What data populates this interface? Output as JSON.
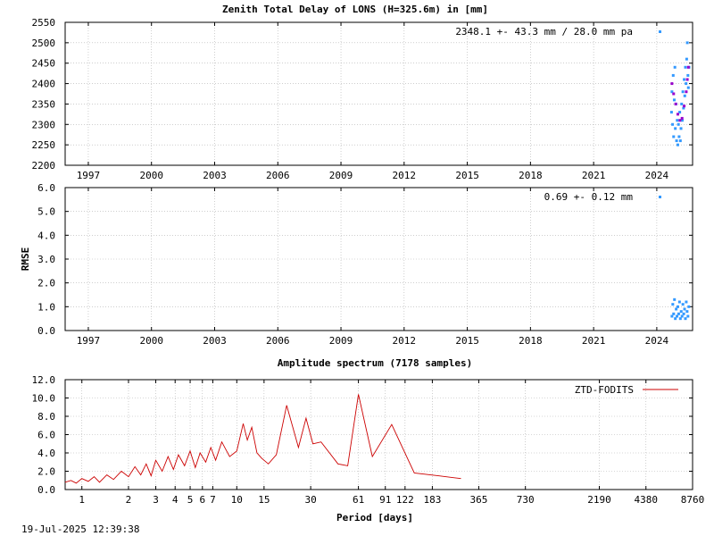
{
  "footer_timestamp": "19-Jul-2025 12:39:38",
  "chart_data": [
    {
      "type": "scatter",
      "title": "Zenith Total Delay of LONS (H=325.6m) in [mm]",
      "ylabel": "",
      "ylim": [
        2200,
        2550
      ],
      "yticks": [
        2200,
        2250,
        2300,
        2350,
        2400,
        2450,
        2500,
        2550
      ],
      "ytick_labels": [
        "2200",
        "2250",
        "2300",
        "2350",
        "2400",
        "2450",
        "2500",
        "2550"
      ],
      "xlim": [
        1995.9,
        2025.7
      ],
      "xticks": [
        1997,
        2000,
        2003,
        2006,
        2009,
        2012,
        2015,
        2018,
        2021,
        2024
      ],
      "xtick_labels": [
        "1997",
        "2000",
        "2003",
        "2006",
        "2009",
        "2012",
        "2015",
        "2018",
        "2021",
        "2024"
      ],
      "annotation": "2348.1 +-  43.3 mm / 28.0 mm pa",
      "legend_marker_color": "#3399ff",
      "grid": true,
      "series": [
        {
          "color": "#3399ff",
          "points": [
            [
              2024.7,
              2330
            ],
            [
              2024.72,
              2380
            ],
            [
              2024.75,
              2300
            ],
            [
              2024.78,
              2420
            ],
            [
              2024.8,
              2270
            ],
            [
              2024.83,
              2360
            ],
            [
              2024.86,
              2440
            ],
            [
              2024.88,
              2290
            ],
            [
              2024.91,
              2350
            ],
            [
              2024.94,
              2260
            ],
            [
              2024.97,
              2310
            ],
            [
              2025.0,
              2250
            ],
            [
              2025.03,
              2300
            ],
            [
              2025.06,
              2270
            ],
            [
              2025.09,
              2330
            ],
            [
              2025.12,
              2260
            ],
            [
              2025.15,
              2290
            ],
            [
              2025.18,
              2350
            ],
            [
              2025.21,
              2310
            ],
            [
              2025.24,
              2380
            ],
            [
              2025.27,
              2340
            ],
            [
              2025.3,
              2410
            ],
            [
              2025.33,
              2370
            ],
            [
              2025.36,
              2440
            ],
            [
              2025.39,
              2400
            ],
            [
              2025.42,
              2460
            ],
            [
              2025.45,
              2500
            ],
            [
              2025.48,
              2420
            ],
            [
              2025.5,
              2390
            ],
            [
              2025.53,
              2440
            ]
          ]
        },
        {
          "color": "#9900cc",
          "points": [
            [
              2024.72,
              2400
            ],
            [
              2024.8,
              2375
            ],
            [
              2024.9,
              2350
            ],
            [
              2025.0,
              2325
            ],
            [
              2025.1,
              2310
            ],
            [
              2025.2,
              2315
            ],
            [
              2025.3,
              2345
            ],
            [
              2025.4,
              2380
            ],
            [
              2025.45,
              2410
            ],
            [
              2025.5,
              2440
            ]
          ]
        }
      ]
    },
    {
      "type": "scatter",
      "title": "",
      "ylabel": "RMSE",
      "ylim": [
        0,
        6
      ],
      "yticks": [
        0,
        1,
        2,
        3,
        4,
        5,
        6
      ],
      "ytick_labels": [
        "0.0",
        "1.0",
        "2.0",
        "3.0",
        "4.0",
        "5.0",
        "6.0"
      ],
      "xlim": [
        1995.9,
        2025.7
      ],
      "xticks": [
        1997,
        2000,
        2003,
        2006,
        2009,
        2012,
        2015,
        2018,
        2021,
        2024
      ],
      "xtick_labels": [
        "1997",
        "2000",
        "2003",
        "2006",
        "2009",
        "2012",
        "2015",
        "2018",
        "2021",
        "2024"
      ],
      "annotation": "0.69 +-  0.12 mm",
      "legend_marker_color": "#3399ff",
      "grid": true,
      "series": [
        {
          "color": "#3399ff",
          "points": [
            [
              2024.72,
              0.6
            ],
            [
              2024.76,
              1.1
            ],
            [
              2024.8,
              0.7
            ],
            [
              2024.84,
              1.3
            ],
            [
              2024.88,
              0.5
            ],
            [
              2024.92,
              0.9
            ],
            [
              2024.96,
              0.6
            ],
            [
              2025.0,
              1.0
            ],
            [
              2025.04,
              0.7
            ],
            [
              2025.08,
              1.2
            ],
            [
              2025.12,
              0.5
            ],
            [
              2025.16,
              0.8
            ],
            [
              2025.2,
              0.6
            ],
            [
              2025.24,
              1.1
            ],
            [
              2025.28,
              0.7
            ],
            [
              2025.32,
              0.9
            ],
            [
              2025.36,
              0.5
            ],
            [
              2025.4,
              1.2
            ],
            [
              2025.44,
              0.8
            ],
            [
              2025.48,
              0.6
            ],
            [
              2025.52,
              1.0
            ]
          ]
        }
      ]
    },
    {
      "type": "line",
      "title": "Amplitude spectrum (7178 samples)",
      "xlabel": "Period [days]",
      "ylabel": "",
      "xscale": "log",
      "ylim": [
        0,
        12
      ],
      "yticks": [
        0,
        2,
        4,
        6,
        8,
        10,
        12
      ],
      "ytick_labels": [
        "0.0",
        "2.0",
        "4.0",
        "6.0",
        "8.0",
        "10.0",
        "12.0"
      ],
      "xlim": [
        0.78,
        8760
      ],
      "xticks": [
        1,
        2,
        3,
        4,
        5,
        6,
        7,
        10,
        15,
        30,
        61,
        91,
        122,
        183,
        365,
        730,
        2190,
        4380,
        8760
      ],
      "xtick_labels": [
        "1",
        "2",
        "3",
        "4",
        "5",
        "6",
        "7",
        "10",
        "15",
        "30",
        "61",
        "91",
        "122",
        "183",
        "365",
        "730",
        "2190",
        "4380",
        "8760"
      ],
      "grid": true,
      "legend": {
        "entries": [
          "ZTD-FODITS"
        ],
        "position": "top-right"
      },
      "series": [
        {
          "name": "ZTD-FODITS",
          "color": "#cc0000",
          "x": [
            0.78,
            0.85,
            0.92,
            1.0,
            1.1,
            1.2,
            1.3,
            1.45,
            1.6,
            1.8,
            2.0,
            2.2,
            2.4,
            2.6,
            2.8,
            3.0,
            3.3,
            3.6,
            3.9,
            4.2,
            4.6,
            5.0,
            5.4,
            5.8,
            6.3,
            6.8,
            7.3,
            8.0,
            9.0,
            10.0,
            11.0,
            11.7,
            12.5,
            13.5,
            14.5,
            16.0,
            18.0,
            21.0,
            25.0,
            28.0,
            31.0,
            35.0,
            45.0,
            52.0,
            61.0,
            75.0,
            100.0,
            140.0,
            200.0,
            280.0
          ],
          "values": [
            0.8,
            1.0,
            0.7,
            1.2,
            0.9,
            1.4,
            0.8,
            1.6,
            1.1,
            2.0,
            1.4,
            2.5,
            1.6,
            2.8,
            1.5,
            3.2,
            2.0,
            3.6,
            2.2,
            3.8,
            2.6,
            4.2,
            2.4,
            4.0,
            3.0,
            4.6,
            3.2,
            5.2,
            3.6,
            4.2,
            7.2,
            5.4,
            6.8,
            4.0,
            3.4,
            2.8,
            3.8,
            9.2,
            4.6,
            7.8,
            5.0,
            5.2,
            2.8,
            2.6,
            10.4,
            3.6,
            7.1,
            1.8,
            1.5,
            1.2
          ]
        }
      ]
    }
  ]
}
